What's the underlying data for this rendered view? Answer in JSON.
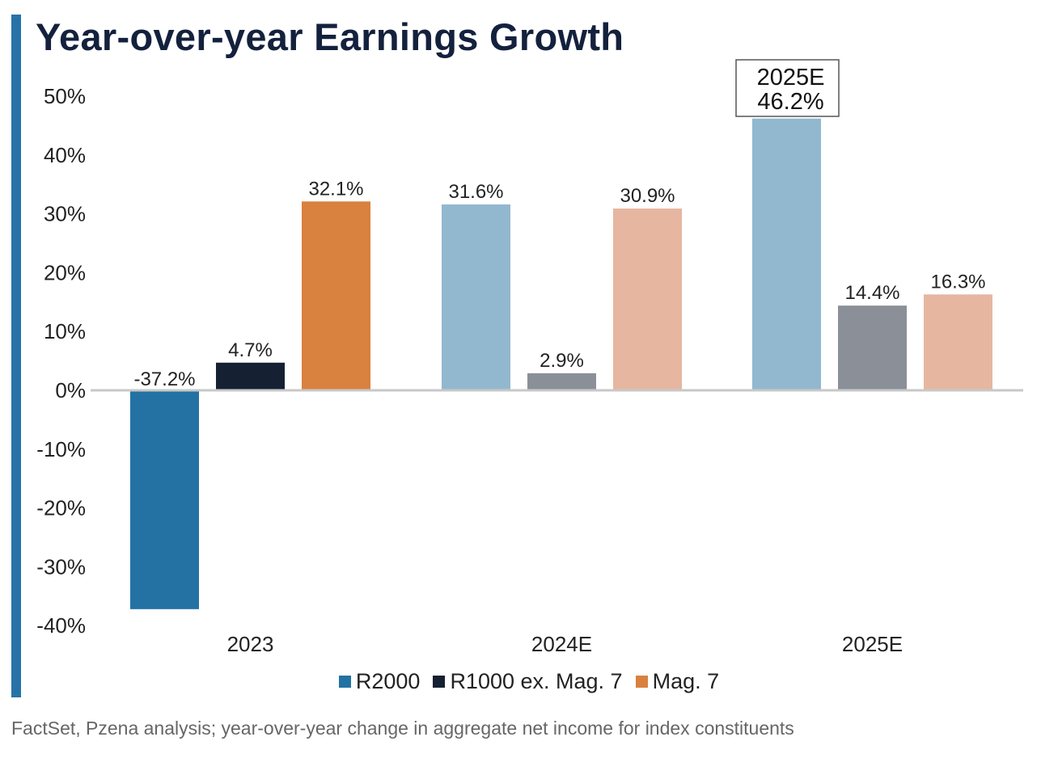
{
  "title": "Year-over-year Earnings Growth",
  "source": "FactSet, Pzena analysis; year-over-year change in aggregate net income for index constituents",
  "chart_data": {
    "type": "bar",
    "title": "Year-over-year Earnings Growth",
    "categories": [
      "2023",
      "2024E",
      "2025E"
    ],
    "series": [
      {
        "name": "R2000",
        "values": [
          -37.2,
          31.6,
          46.2
        ],
        "labels": [
          "-37.2%",
          "31.6%",
          "46.2%"
        ]
      },
      {
        "name": "R1000 ex. Mag. 7",
        "values": [
          4.7,
          2.9,
          14.4
        ],
        "labels": [
          "4.7%",
          "2.9%",
          "14.4%"
        ]
      },
      {
        "name": "Mag. 7",
        "values": [
          32.1,
          30.9,
          16.3
        ],
        "labels": [
          "32.1%",
          "30.9%",
          "16.3%"
        ]
      }
    ],
    "colors": {
      "2023": [
        "#2372a3",
        "#162033",
        "#d9813f"
      ],
      "2024E": [
        "#92b8d0",
        "#8b8f97",
        "#e6b6a0"
      ],
      "2025E": [
        "#92b8d0",
        "#8b8f97",
        "#e6b6a0"
      ]
    },
    "legend_colors": [
      "#2372a3",
      "#162033",
      "#d9813f"
    ],
    "yticks": [
      "50%",
      "40%",
      "30%",
      "20%",
      "10%",
      "0%",
      "-10%",
      "-20%",
      "-30%",
      "-40%"
    ],
    "ytick_values": [
      50,
      40,
      30,
      20,
      10,
      0,
      -10,
      -20,
      -30,
      -40
    ],
    "ylim": [
      -40,
      50
    ],
    "legend_position": "bottom",
    "grid": false,
    "callout": {
      "line1": "2025E",
      "line2": "46.2%"
    }
  }
}
